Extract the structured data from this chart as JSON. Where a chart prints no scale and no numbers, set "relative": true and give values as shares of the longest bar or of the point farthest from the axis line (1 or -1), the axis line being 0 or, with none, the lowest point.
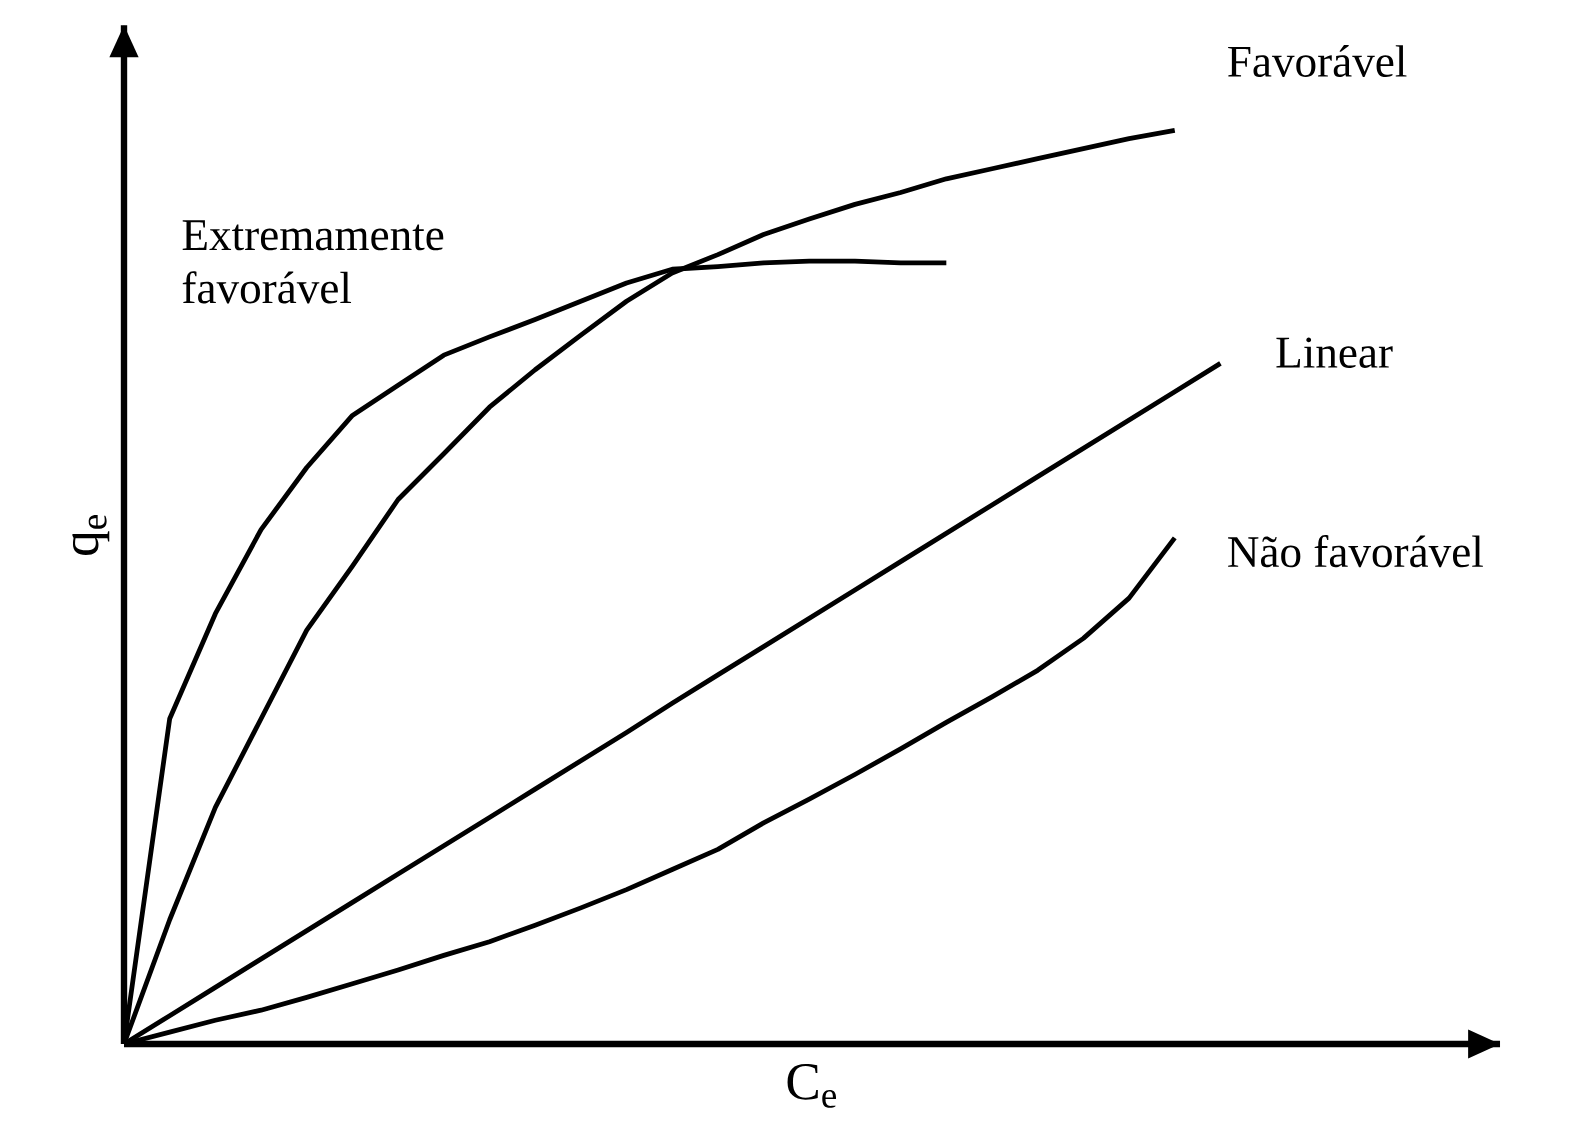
{
  "chart_data": {
    "type": "line",
    "relative": true,
    "xlabel": "C$_{e}$",
    "ylabel": "q$_{e}$",
    "marker": "none",
    "line_style": "solid",
    "categories": [
      null,
      null,
      null,
      null,
      null,
      null,
      null,
      null,
      null,
      null,
      null,
      null,
      null,
      null,
      null,
      null,
      null,
      null,
      null,
      null,
      null,
      null,
      null,
      null,
      null
    ],
    "series": [
      {
        "name": "Extremamente favorável",
        "color": "#000000",
        "values": [
          0,
          0.356,
          0.471,
          0.563,
          0.631,
          0.688,
          0.721,
          0.754,
          0.774,
          0.793,
          0.813,
          0.833,
          0.848,
          0.851,
          0.855,
          0.857,
          0.857,
          0.855,
          0.855,
          null,
          null,
          null,
          null,
          null,
          null
        ]
      },
      {
        "name": "Favorável",
        "color": "#000000",
        "values": [
          0,
          0.136,
          0.259,
          0.356,
          0.453,
          0.523,
          0.596,
          0.646,
          0.697,
          0.738,
          0.776,
          0.813,
          0.844,
          0.864,
          0.886,
          0.903,
          0.919,
          0.932,
          0.947,
          0.958,
          0.969,
          0.98,
          0.991,
          1.0,
          null
        ]
      },
      {
        "name": "Linear",
        "color": "#000000",
        "values": [
          0,
          0.031,
          0.062,
          0.093,
          0.124,
          0.155,
          0.186,
          0.217,
          0.248,
          0.279,
          0.31,
          0.341,
          0.373,
          0.404,
          0.435,
          0.466,
          0.497,
          0.528,
          0.559,
          0.59,
          0.621,
          0.652,
          0.683,
          0.714,
          0.745
        ]
      },
      {
        "name": "Não favorável",
        "color": "#000000",
        "values": [
          0,
          0.013,
          0.026,
          0.037,
          0.051,
          0.066,
          0.081,
          0.097,
          0.112,
          0.13,
          0.149,
          0.169,
          0.191,
          0.213,
          0.242,
          0.268,
          0.295,
          0.323,
          0.352,
          0.38,
          0.409,
          0.444,
          0.488,
          0.554,
          null
        ]
      }
    ]
  }
}
